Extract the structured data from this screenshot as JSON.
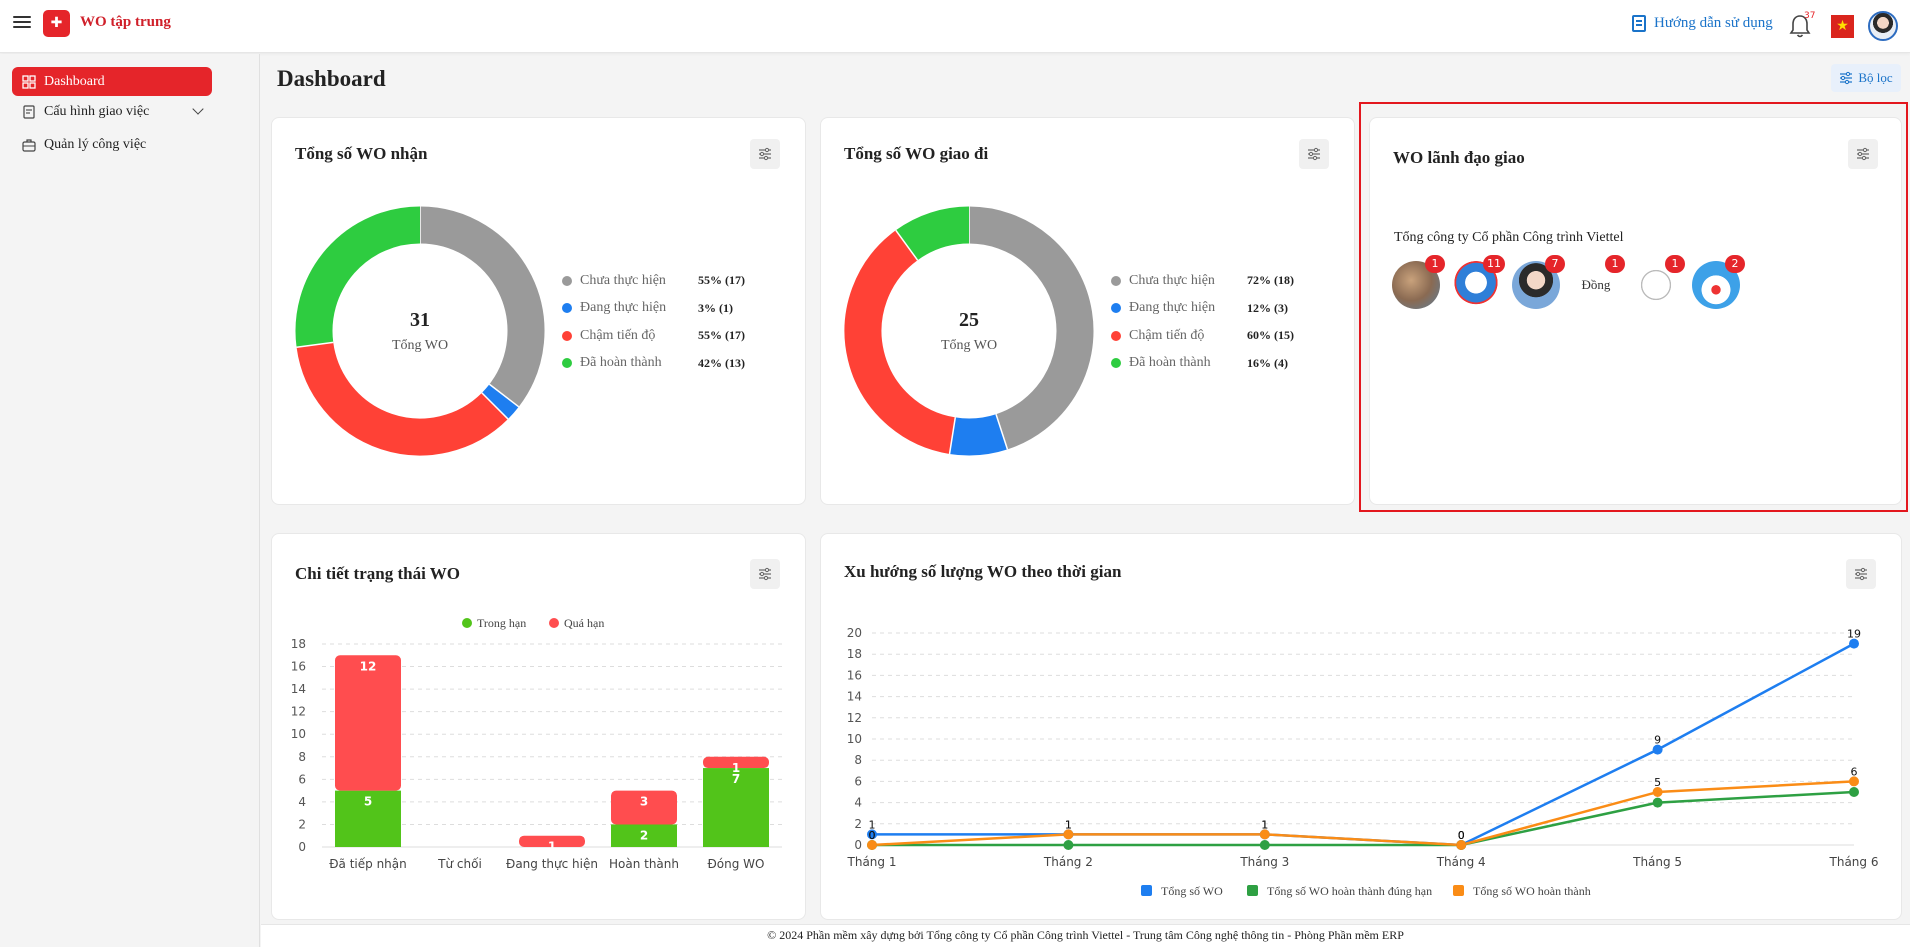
{
  "app": {
    "title": "WO tập trung",
    "logo_text": "✚"
  },
  "header": {
    "guide_label": "Hướng dẫn sử dụng",
    "notif_count": "37"
  },
  "sidebar": {
    "items": [
      {
        "label": "Dashboard",
        "icon": "grid-icon",
        "active": true
      },
      {
        "label": "Cấu hình giao việc",
        "icon": "config-icon",
        "expandable": true
      },
      {
        "label": "Quản lý công việc",
        "icon": "briefcase-icon"
      }
    ]
  },
  "main": {
    "title": "Dashboard",
    "filter_label": "Bộ lọc"
  },
  "received": {
    "title": "Tổng số WO nhận",
    "total": "31",
    "total_label": "Tổng WO",
    "legend": [
      {
        "label": "Chưa thực hiện",
        "value": "55% (17)",
        "color": "#9a9a9a"
      },
      {
        "label": "Đang thực hiện",
        "value": "3% (1)",
        "color": "#1e7ef0"
      },
      {
        "label": "Chậm tiến độ",
        "value": "55% (17)",
        "color": "#ff4136"
      },
      {
        "label": "Đã hoàn thành",
        "value": "42% (13)",
        "color": "#2ecc40"
      }
    ]
  },
  "sent": {
    "title": "Tổng số WO giao đi",
    "total": "25",
    "total_label": "Tổng WO",
    "legend": [
      {
        "label": "Chưa thực hiện",
        "value": "72% (18)",
        "color": "#9a9a9a"
      },
      {
        "label": "Đang thực hiện",
        "value": "12% (3)",
        "color": "#1e7ef0"
      },
      {
        "label": "Chậm tiến độ",
        "value": "60% (15)",
        "color": "#ff4136"
      },
      {
        "label": "Đã hoàn thành",
        "value": "16% (4)",
        "color": "#2ecc40"
      }
    ]
  },
  "leaders": {
    "title": "WO lãnh đạo giao",
    "org": "Tổng công ty Cổ phần Công trình Viettel",
    "people": [
      {
        "badge": "1"
      },
      {
        "badge": "11"
      },
      {
        "badge": "7"
      },
      {
        "badge": "1",
        "alt": "Đồng"
      },
      {
        "badge": "1"
      },
      {
        "badge": "2"
      }
    ]
  },
  "status_detail": {
    "title": "Chi tiết trạng thái WO"
  },
  "trend": {
    "title": "Xu hướng số lượng WO theo thời gian"
  },
  "footer": {
    "text": "© 2024 Phần mềm xây dựng bởi Tổng công ty Cổ phần Công trình Viettel - Trung tâm Công nghệ thông tin - Phòng Phần mềm ERP"
  },
  "chart_data": [
    {
      "type": "pie",
      "title": "Tổng số WO nhận",
      "categories": [
        "Chưa thực hiện",
        "Đang thực hiện",
        "Chậm tiến độ",
        "Đã hoàn thành"
      ],
      "values": [
        17,
        1,
        17,
        13
      ],
      "colors": [
        "#9a9a9a",
        "#1e7ef0",
        "#ff4136",
        "#2ecc40"
      ]
    },
    {
      "type": "pie",
      "title": "Tổng số WO giao đi",
      "categories": [
        "Chưa thực hiện",
        "Đang thực hiện",
        "Chậm tiến độ",
        "Đã hoàn thành"
      ],
      "values": [
        18,
        3,
        15,
        4
      ],
      "colors": [
        "#9a9a9a",
        "#1e7ef0",
        "#ff4136",
        "#2ecc40"
      ]
    },
    {
      "type": "bar",
      "title": "Chi tiết trạng thái WO",
      "stacked": true,
      "categories": [
        "Đã tiếp nhận",
        "Từ chối",
        "Đang thực hiện",
        "Hoàn thành",
        "Đóng WO"
      ],
      "series": [
        {
          "name": "Trong hạn",
          "values": [
            5,
            0,
            0,
            2,
            7
          ],
          "color": "#52c41a"
        },
        {
          "name": "Quá hạn",
          "values": [
            12,
            0,
            1,
            3,
            1
          ],
          "color": "#ff4d4f"
        }
      ],
      "ylim": [
        0,
        18
      ],
      "yticks": [
        0,
        2,
        4,
        6,
        8,
        10,
        12,
        14,
        16,
        18
      ],
      "legend": "top"
    },
    {
      "type": "line",
      "title": "Xu hướng số lượng WO theo thời gian",
      "categories": [
        "Tháng 1",
        "Tháng 2",
        "Tháng 3",
        "Tháng 4",
        "Tháng 5",
        "Tháng 6"
      ],
      "series": [
        {
          "name": "Tổng số WO",
          "values": [
            1,
            1,
            1,
            0,
            9,
            19
          ],
          "color": "#1e7ef0"
        },
        {
          "name": "Tổng số WO hoàn thành đúng hạn",
          "values": [
            0,
            0,
            0,
            0,
            4,
            5
          ],
          "color": "#2ea043"
        },
        {
          "name": "Tổng số WO hoàn thành",
          "values": [
            0,
            1,
            1,
            0,
            5,
            6
          ],
          "color": "#fa8c16"
        }
      ],
      "ylim": [
        0,
        20
      ],
      "yticks": [
        0,
        2,
        4,
        6,
        8,
        10,
        12,
        14,
        16,
        18,
        20
      ],
      "legend": "bottom"
    }
  ]
}
